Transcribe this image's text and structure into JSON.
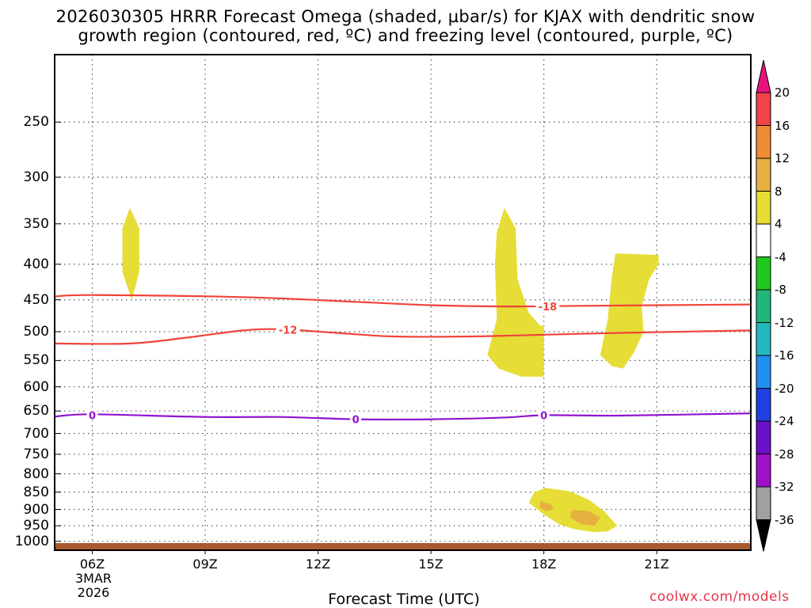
{
  "title_line1": "2026030305 HRRR Forecast Omega (shaded, µbar/s) for KJAX with dendritic snow",
  "title_line2": "growth region (contoured, red, ºC) and freezing level (contoured, purple, ºC)",
  "xaxis_title": "Forecast Time (UTC)",
  "credit": "coolwx.com/models",
  "date_label": [
    "3MAR",
    "2026"
  ],
  "chart_data": {
    "type": "heatmap",
    "title": "2026030305 HRRR Forecast Omega (shaded, µbar/s) for KJAX with dendritic snow growth region (contoured, red, ºC) and freezing level (contoured, purple, ºC)",
    "xlabel": "Forecast Time (UTC)",
    "ylabel": "",
    "x_units": "hours UTC on 3 MAR 2026",
    "xlim": [
      5,
      23.5
    ],
    "ylim": [
      1030,
      200
    ],
    "y_scale": "log (pressure, hPa)",
    "grid": true,
    "x_ticks": [
      {
        "x": 6,
        "label": "06Z"
      },
      {
        "x": 9,
        "label": "09Z"
      },
      {
        "x": 12,
        "label": "12Z"
      },
      {
        "x": 15,
        "label": "15Z"
      },
      {
        "x": 18,
        "label": "18Z"
      },
      {
        "x": 21,
        "label": "21Z"
      }
    ],
    "y_ticks": [
      250,
      300,
      350,
      400,
      450,
      500,
      550,
      600,
      650,
      700,
      750,
      800,
      850,
      900,
      950,
      1000
    ],
    "colorbar": {
      "labels": [
        "20",
        "16",
        "12",
        "8",
        "4",
        "-4",
        "-8",
        "-12",
        "-16",
        "-20",
        "-24",
        "-28",
        "-32",
        "-36"
      ],
      "colors": [
        "#e8127f",
        "#f0434a",
        "#ef8c33",
        "#e6b040",
        "#e6dd36",
        "#ffffff",
        "#20c81e",
        "#1fb87a",
        "#23b8c0",
        "#1e90f0",
        "#2040e0",
        "#6a10c8",
        "#a010c8",
        "#a0a0a0",
        "#000000"
      ]
    },
    "contours": [
      {
        "name": "-18",
        "color": "#f0433a",
        "points": [
          [
            5,
            445
          ],
          [
            6,
            443
          ],
          [
            10,
            446
          ],
          [
            13,
            453
          ],
          [
            15,
            458
          ],
          [
            17,
            460
          ],
          [
            19,
            459
          ],
          [
            23.5,
            457
          ]
        ]
      },
      {
        "name": "-12",
        "color": "#f0433a",
        "points": [
          [
            5,
            520
          ],
          [
            7,
            520
          ],
          [
            8.5,
            510
          ],
          [
            10,
            498
          ],
          [
            11,
            496
          ],
          [
            12.5,
            502
          ],
          [
            14,
            508
          ],
          [
            16,
            508
          ],
          [
            18,
            505
          ],
          [
            20,
            502
          ],
          [
            23.5,
            498
          ]
        ]
      },
      {
        "name": "0",
        "color": "#9014d0",
        "points": [
          [
            5,
            662
          ],
          [
            6,
            657
          ],
          [
            9,
            663
          ],
          [
            11,
            663
          ],
          [
            13,
            668
          ],
          [
            15,
            668
          ],
          [
            17,
            664
          ],
          [
            18,
            659
          ],
          [
            20,
            660
          ],
          [
            23.5,
            655
          ]
        ]
      }
    ],
    "contour_labels": [
      {
        "text": "-18",
        "x": 18.1,
        "p": 460,
        "color": "#f0433a"
      },
      {
        "text": "-12",
        "x": 11.2,
        "p": 497,
        "color": "#f0433a"
      },
      {
        "text": "0",
        "x": 6,
        "p": 659,
        "color": "#9014d0"
      },
      {
        "text": "0",
        "x": 13,
        "p": 668,
        "color": "#9014d0"
      },
      {
        "text": "0",
        "x": 18,
        "p": 659,
        "color": "#9014d0"
      }
    ],
    "shaded_regions": [
      {
        "value": "4 to 8",
        "color": "#e6dd36",
        "points": [
          [
            7.0,
            332
          ],
          [
            7.25,
            355
          ],
          [
            7.25,
            410
          ],
          [
            7.05,
            450
          ],
          [
            6.8,
            410
          ],
          [
            6.8,
            355
          ]
        ]
      },
      {
        "value": "4 to 8",
        "color": "#e6dd36",
        "points": [
          [
            16.95,
            332
          ],
          [
            17.25,
            355
          ],
          [
            17.3,
            420
          ],
          [
            17.6,
            470
          ],
          [
            17.9,
            490
          ],
          [
            18.0,
            490
          ],
          [
            18.0,
            580
          ],
          [
            17.4,
            580
          ],
          [
            16.8,
            565
          ],
          [
            16.5,
            540
          ],
          [
            16.75,
            480
          ],
          [
            16.7,
            400
          ],
          [
            16.75,
            360
          ]
        ]
      },
      {
        "value": "4 to 8",
        "color": "#e6dd36",
        "points": [
          [
            19.9,
            386
          ],
          [
            21.05,
            388
          ],
          [
            21.05,
            400
          ],
          [
            20.8,
            420
          ],
          [
            20.6,
            460
          ],
          [
            20.65,
            500
          ],
          [
            20.4,
            535
          ],
          [
            20.1,
            565
          ],
          [
            19.8,
            560
          ],
          [
            19.5,
            540
          ],
          [
            19.7,
            480
          ],
          [
            19.8,
            420
          ]
        ]
      },
      {
        "value": "4 to 8",
        "color": "#e6dd36",
        "points": [
          [
            18.05,
            838
          ],
          [
            18.7,
            848
          ],
          [
            19.2,
            872
          ],
          [
            19.6,
            905
          ],
          [
            19.95,
            950
          ],
          [
            19.7,
            968
          ],
          [
            19.3,
            970
          ],
          [
            18.8,
            960
          ],
          [
            18.4,
            945
          ],
          [
            18.0,
            915
          ],
          [
            17.6,
            880
          ],
          [
            17.75,
            850
          ]
        ]
      },
      {
        "value": "8 to 12",
        "color": "#e6b040",
        "points": [
          [
            17.9,
            876
          ],
          [
            18.2,
            885
          ],
          [
            18.25,
            900
          ],
          [
            18.05,
            905
          ],
          [
            17.9,
            895
          ]
        ]
      },
      {
        "value": "8 to 12",
        "color": "#e6b040",
        "points": [
          [
            18.75,
            902
          ],
          [
            19.2,
            905
          ],
          [
            19.5,
            925
          ],
          [
            19.35,
            950
          ],
          [
            19.0,
            945
          ],
          [
            18.7,
            925
          ]
        ]
      }
    ],
    "surface": {
      "color": "#a85a2e"
    }
  }
}
